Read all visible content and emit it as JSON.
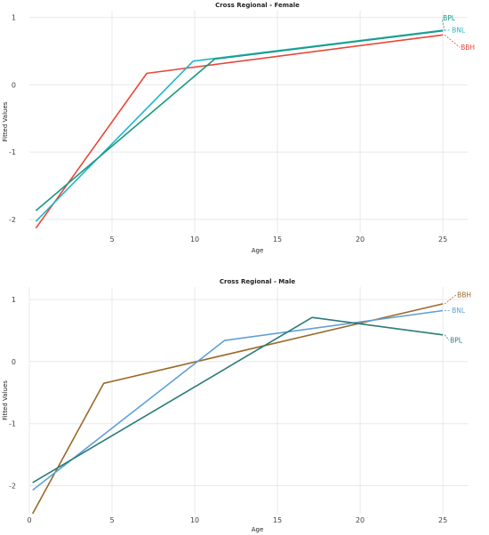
{
  "chart_data": [
    {
      "type": "line",
      "title": "Cross Regional - Female",
      "xlabel": "Age",
      "ylabel": "Fitted Values",
      "xlim": [
        0,
        26.5
      ],
      "ylim": [
        -2.2,
        1.1
      ],
      "xticks": [
        5,
        10,
        15,
        20,
        25
      ],
      "yticks": [
        1,
        0,
        -1,
        -2
      ],
      "grid": true,
      "series": [
        {
          "name": "BBH",
          "color": "#e8473a",
          "x": [
            0.4,
            7.1,
            25
          ],
          "y": [
            -2.13,
            0.17,
            0.74
          ]
        },
        {
          "name": "BNL",
          "color": "#22b5c8",
          "x": [
            0.4,
            9.9,
            25
          ],
          "y": [
            -2.03,
            0.35,
            0.81
          ]
        },
        {
          "name": "BPL",
          "color": "#1a9a7e",
          "x": [
            0.4,
            11.2,
            25
          ],
          "y": [
            -1.87,
            0.38,
            0.8
          ]
        }
      ]
    },
    {
      "type": "line",
      "title": "Cross Regional - Male",
      "xlabel": "Age",
      "ylabel": "Fitted Values",
      "xlim": [
        0,
        26.5
      ],
      "ylim": [
        -2.45,
        1.2
      ],
      "xticks": [
        0,
        5,
        10,
        15,
        20,
        25
      ],
      "yticks": [
        1,
        0,
        -1,
        -2
      ],
      "grid": true,
      "series": [
        {
          "name": "BBH",
          "color": "#9a6a28",
          "x": [
            0.2,
            4.5,
            25
          ],
          "y": [
            -2.45,
            -0.35,
            0.93
          ]
        },
        {
          "name": "BNL",
          "color": "#5f9fd8",
          "x": [
            0.2,
            11.8,
            25
          ],
          "y": [
            -2.07,
            0.34,
            0.82
          ]
        },
        {
          "name": "BPL",
          "color": "#2a7b78",
          "x": [
            0.2,
            17.1,
            25
          ],
          "y": [
            -1.95,
            0.71,
            0.43
          ]
        }
      ]
    }
  ]
}
